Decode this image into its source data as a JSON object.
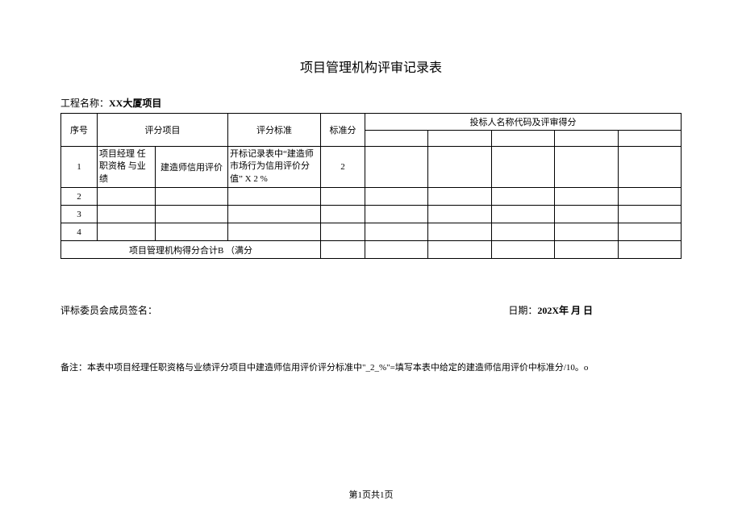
{
  "title": "项目管理机构评审记录表",
  "project_label": "工程名称：",
  "project_value": "XX大厦项目",
  "headers": {
    "seq": "序号",
    "item": "评分项目",
    "standard": "评分标准",
    "std_score": "标准分",
    "bidders": "投标人名称代码及评审得分"
  },
  "rows": [
    {
      "seq": "1",
      "item1": "项目经理 任职资格 与业绩",
      "item2": "建造师信用评价",
      "standard": "开标记录表中“建造师 市场行为信用评价分值” X 2 %",
      "score": "2"
    },
    {
      "seq": "2",
      "item1": "",
      "item2": "",
      "standard": "",
      "score": ""
    },
    {
      "seq": "3",
      "item1": "",
      "item2": "",
      "standard": "",
      "score": ""
    },
    {
      "seq": "4",
      "item1": "",
      "item2": "",
      "standard": "",
      "score": ""
    }
  ],
  "sum_label": "项目管理机构得分合计B （满分",
  "signature_label": "评标委员会成员签名：",
  "date_label": "日期：",
  "date_value": "202X年 月 日",
  "note_label": "备注：",
  "note_text": "本表中项目经理任职资格与业绩评分项目中建造师信用评价评分标准中\"_2_%\"=填写本表中给定的建造师信用评价中标准分/10。o",
  "footer": "第1页共1页"
}
